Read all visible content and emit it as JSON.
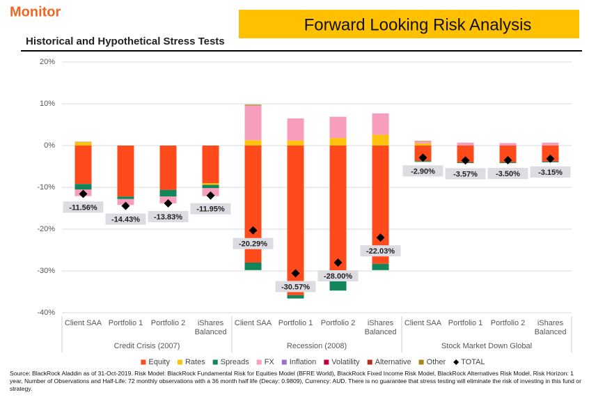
{
  "header": {
    "brand": "Monitor",
    "banner": "Forward Looking Risk Analysis"
  },
  "chart_data": {
    "type": "stacked-bar",
    "title": "Historical and Hypothetical Stress Tests",
    "groups": [
      {
        "name": "Credit Crisis (2007)",
        "categories": [
          "Client SAA",
          "Portfolio 1",
          "Portfolio 2",
          "iShares Balanced"
        ]
      },
      {
        "name": "Recession (2008)",
        "categories": [
          "Client SAA",
          "Portfolio 1",
          "Portfolio 2",
          "iShares Balanced"
        ]
      },
      {
        "name": "Stock Market Down Global",
        "categories": [
          "Client SAA",
          "Portfolio 1",
          "Portfolio 2",
          "iShares Balanced"
        ]
      }
    ],
    "ylim": [
      -40,
      20
    ],
    "yticks": [
      {
        "value": -40,
        "label": "-40%"
      },
      {
        "value": -30,
        "label": "-30%"
      },
      {
        "value": -20,
        "label": "-20%"
      },
      {
        "value": -10,
        "label": "-10%"
      },
      {
        "value": 0,
        "label": "0%"
      },
      {
        "value": 10,
        "label": "10%"
      },
      {
        "value": 20,
        "label": "20%"
      }
    ],
    "grid": true,
    "legend": "bottom",
    "series": [
      {
        "name": "Equity",
        "color": "#ff4a1c",
        "values": [
          -9.2,
          -12.2,
          -10.6,
          -9,
          -28,
          -35.8,
          -32.2,
          -28.3,
          -3.7,
          -4,
          -4,
          -3.8
        ]
      },
      {
        "name": "Rates",
        "color": "#ffc20e",
        "values": [
          0.8,
          0,
          0,
          -0.4,
          1.3,
          1.2,
          1.8,
          2.6,
          0.5,
          0,
          0,
          0
        ]
      },
      {
        "name": "Spreads",
        "color": "#12865a",
        "values": [
          -1.3,
          -0.6,
          -1.6,
          -0.8,
          -1.8,
          -0.8,
          -2.5,
          -1.5,
          -0.2,
          -0.2,
          -0.2,
          -0.2
        ]
      },
      {
        "name": "FX",
        "color": "#f79ebf",
        "values": [
          -1.6,
          -1.4,
          -1.6,
          -1.9,
          8.3,
          5.3,
          5.1,
          5.1,
          0.5,
          0.7,
          0.6,
          0.7
        ]
      },
      {
        "name": "Inflation",
        "color": "#9b6fcf",
        "values": [
          0,
          0,
          0,
          0,
          0,
          0,
          0,
          0,
          0,
          0,
          0,
          0
        ]
      },
      {
        "name": "Volatility",
        "color": "#c0002f",
        "values": [
          0,
          0,
          0,
          0,
          0,
          0,
          0,
          0,
          0,
          0,
          0,
          0
        ]
      },
      {
        "name": "Alternative",
        "color": "#b5301c",
        "values": [
          0,
          0,
          0,
          0,
          0,
          0,
          0,
          0,
          0,
          0,
          0,
          0
        ]
      },
      {
        "name": "Other",
        "color": "#a8861a",
        "values": [
          0.1,
          0,
          0,
          0,
          0.2,
          0,
          0,
          0,
          0.1,
          0,
          0,
          0
        ]
      },
      {
        "name": "TOTAL",
        "color": "#000000",
        "marker": "diamond",
        "values": [
          -11.56,
          -14.43,
          -13.83,
          -11.95,
          -20.29,
          -30.57,
          -28,
          -22.03,
          -2.9,
          -3.57,
          -3.5,
          -3.15
        ],
        "value_labels": [
          "-11.56%",
          "-14.43%",
          "-13.83%",
          "-11.95%",
          "-20.29%",
          "-30.57%",
          "-28.00%",
          "-22.03%",
          "-2.90%",
          "-3.57%",
          "-3.50%",
          "-3.15%"
        ]
      }
    ]
  },
  "footer": "Source: BlackRock Aladdin as of 31-Oct-2019. Risk Model: BlackRock Fundamental Risk for Equities Model (BFRE World), BlackRock Fixed Income Risk Model, BlackRock Alternatives Risk Model, Risk Horizon: 1 year, Number of Observations and Half-Life: 72 monthly observations with a 36 month half life (Decay: 0.9809), Currency: AUD. There is no guarantee that stress testing will eliminate the risk of investing in this fund or strategy."
}
